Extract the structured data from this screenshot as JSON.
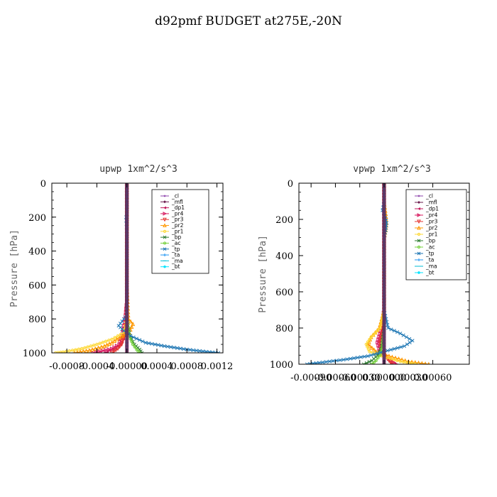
{
  "page": {
    "title": "d92pmf  BUDGET at275E,-20N"
  },
  "colors": {
    "_cl": "#8e44ad",
    "_mfl": "#6a1b4d",
    "_dp1": "#c2185b",
    "_pr4": "#d81b60",
    "_pr3": "#e53935",
    "_pr2": "#ff9800",
    "_pr1": "#fdd835",
    "_bp": "#2e7d32",
    "_ac": "#76d13d",
    "_tp": "#1f77b4",
    "_ta": "#2196f3",
    "_ma": "#00bcd4",
    "_bt": "#00e5ff"
  },
  "chart_data": [
    {
      "type": "line",
      "title": "upwp   1xm^2/s^3",
      "ylabel": "Pressure [hPa]",
      "xlabel": "",
      "xlim": [
        -0.001,
        0.00128
      ],
      "ylim": [
        1000,
        0
      ],
      "x_ticks": [
        -0.0008,
        -0.0004,
        0.0,
        0.0004,
        0.0008,
        0.0012
      ],
      "x_tick_labels": [
        "-0.0008",
        "-0.0004",
        "-0.00000",
        "0.0004",
        "0.0008",
        "0.0012"
      ],
      "y_ticks": [
        0,
        200,
        400,
        600,
        800,
        1000
      ],
      "y_tick_labels": [
        "0",
        "200",
        "400",
        "600",
        "800",
        "1000"
      ],
      "legend_position": "top-right",
      "legend": [
        "_cl",
        "_mfl",
        "_dp1",
        "_pr4",
        "_pr3",
        "_pr2",
        "_pr1",
        "_bp",
        "_ac",
        "_tp",
        "_ta",
        "_ma",
        "_bt"
      ],
      "series": [
        {
          "name": "_cl",
          "x": [
            0,
            0,
            0,
            0,
            0,
            0,
            0,
            0,
            0,
            0,
            0
          ],
          "y": [
            0,
            100,
            200,
            300,
            400,
            500,
            600,
            700,
            800,
            900,
            1000
          ]
        },
        {
          "name": "_mfl",
          "x": [
            0,
            0,
            0,
            0,
            0,
            0,
            0,
            0,
            0,
            0,
            0
          ],
          "y": [
            0,
            100,
            200,
            300,
            400,
            500,
            600,
            700,
            800,
            900,
            1000
          ]
        },
        {
          "name": "_dp1",
          "x": [
            0,
            0,
            0,
            0,
            0,
            0,
            0,
            0,
            0,
            -3e-05,
            -8e-05,
            -0.00015,
            -0.0003
          ],
          "y": [
            0,
            100,
            200,
            300,
            400,
            500,
            600,
            700,
            800,
            900,
            950,
            975,
            1000
          ]
        },
        {
          "name": "_pr4",
          "x": [
            0,
            0,
            0,
            0,
            0,
            0,
            0,
            0,
            -2e-05,
            -6e-05,
            -0.0001,
            -0.0002,
            -0.00045
          ],
          "y": [
            0,
            100,
            200,
            300,
            400,
            500,
            600,
            700,
            800,
            900,
            950,
            975,
            1000
          ]
        },
        {
          "name": "_pr3",
          "x": [
            0,
            0,
            0,
            0,
            0,
            0,
            0,
            0,
            -1e-05,
            -4e-05,
            -7e-05,
            -0.00012,
            -0.0002
          ],
          "y": [
            0,
            100,
            200,
            300,
            400,
            500,
            600,
            700,
            800,
            900,
            950,
            975,
            1000
          ]
        },
        {
          "name": "_pr2",
          "x": [
            0,
            0,
            0,
            0,
            0,
            0,
            0,
            2e-05,
            8e-05,
            3e-05,
            -0.0001,
            -0.0002,
            -0.0003,
            -0.0005,
            -0.0007
          ],
          "y": [
            0,
            100,
            200,
            300,
            400,
            500,
            600,
            800,
            830,
            880,
            910,
            940,
            960,
            985,
            1000
          ]
        },
        {
          "name": "_pr1",
          "x": [
            0,
            0,
            0,
            0,
            0,
            0,
            0,
            0,
            0,
            -4e-05,
            -0.0002,
            -0.0004,
            -0.0006,
            -0.00085,
            -0.00095
          ],
          "y": [
            0,
            100,
            200,
            300,
            400,
            500,
            600,
            700,
            800,
            880,
            920,
            950,
            975,
            995,
            1000
          ]
        },
        {
          "name": "_bp",
          "x": [
            0,
            0,
            0,
            0,
            0,
            0,
            0,
            0,
            0,
            4e-05,
            0.0001,
            0.00017,
            0.0002
          ],
          "y": [
            0,
            100,
            200,
            300,
            400,
            500,
            600,
            700,
            800,
            900,
            950,
            980,
            1000
          ]
        },
        {
          "name": "_ac",
          "x": [
            0,
            0,
            0,
            0,
            0,
            0,
            0,
            0,
            0,
            3e-05,
            8e-05,
            0.00013,
            0.00017
          ],
          "y": [
            0,
            100,
            200,
            300,
            400,
            500,
            600,
            700,
            800,
            900,
            950,
            980,
            1000
          ]
        },
        {
          "name": "_tp",
          "x": [
            0,
            0,
            0,
            -1e-05,
            0,
            0,
            0,
            0,
            -4e-05,
            -0.00011,
            -4e-05,
            5e-05,
            0.00025,
            0.0005,
            0.0008,
            0.0011,
            0.00122
          ],
          "y": [
            0,
            100,
            180,
            200,
            300,
            400,
            600,
            780,
            800,
            840,
            870,
            900,
            940,
            960,
            980,
            995,
            1000
          ]
        },
        {
          "name": "_ta",
          "x": [
            0,
            0,
            0,
            0,
            0,
            0,
            0,
            0,
            0,
            0,
            0
          ],
          "y": [
            0,
            100,
            200,
            300,
            400,
            500,
            600,
            700,
            800,
            900,
            1000
          ]
        },
        {
          "name": "_ma",
          "x": [
            0,
            0,
            0,
            0,
            0,
            0,
            0,
            0,
            0,
            0,
            0
          ],
          "y": [
            0,
            100,
            200,
            300,
            400,
            500,
            600,
            700,
            800,
            900,
            1000
          ]
        },
        {
          "name": "_bt",
          "x": [
            0,
            0,
            0,
            0,
            0,
            0,
            0,
            0,
            0,
            0,
            0
          ],
          "y": [
            0,
            100,
            200,
            300,
            400,
            500,
            600,
            700,
            800,
            900,
            1000
          ]
        }
      ]
    },
    {
      "type": "line",
      "title": "vpwp   1xm^2/s^3",
      "ylabel": "Pressure [hPa]",
      "xlabel": "",
      "xlim": [
        -0.00105,
        0.00105
      ],
      "ylim": [
        1000,
        0
      ],
      "x_ticks": [
        -0.0009,
        -0.0006,
        -0.0003,
        0.0,
        0.0003,
        0.0006
      ],
      "x_tick_labels": [
        "-0.00090",
        "-0.00060",
        "-0.00030",
        "0.000000",
        "0.00030",
        "0.00060"
      ],
      "y_ticks": [
        0,
        200,
        400,
        600,
        800,
        1000
      ],
      "y_tick_labels": [
        "0",
        "200",
        "400",
        "600",
        "800",
        "1000"
      ],
      "legend_position": "top-right",
      "legend": [
        "_cl",
        "_mfl",
        "_dp1",
        "_pr4",
        "_pr3",
        "_pr2",
        "_pr1",
        "_bp",
        "_ac",
        "_tp",
        "_ta",
        "_ma",
        "_bt"
      ],
      "series": [
        {
          "name": "_cl",
          "x": [
            0,
            0,
            0,
            0,
            0,
            0,
            0,
            0,
            0,
            0,
            0
          ],
          "y": [
            0,
            100,
            200,
            300,
            400,
            500,
            600,
            700,
            800,
            900,
            1000
          ]
        },
        {
          "name": "_mfl",
          "x": [
            0,
            0,
            0,
            0,
            0,
            0,
            0,
            0,
            0,
            0,
            0
          ],
          "y": [
            0,
            100,
            200,
            300,
            400,
            500,
            600,
            700,
            800,
            900,
            1000
          ]
        },
        {
          "name": "_dp1",
          "x": [
            0,
            0,
            0,
            0,
            0,
            0,
            0,
            0,
            -2e-05,
            -6e-05,
            -4e-05,
            4e-05,
            0.0001
          ],
          "y": [
            0,
            100,
            200,
            300,
            400,
            500,
            600,
            700,
            800,
            880,
            930,
            970,
            1000
          ]
        },
        {
          "name": "_pr4",
          "x": [
            0,
            0,
            0,
            0,
            0,
            0,
            0,
            0,
            -3e-05,
            -8e-05,
            -5e-05,
            6e-05,
            0.00015
          ],
          "y": [
            0,
            100,
            200,
            300,
            400,
            500,
            600,
            700,
            800,
            880,
            930,
            970,
            1000
          ]
        },
        {
          "name": "_pr3",
          "x": [
            0,
            0,
            0,
            0,
            0,
            0,
            0,
            0,
            -2e-05,
            -5e-05,
            -3e-05,
            4e-05,
            0.0001
          ],
          "y": [
            0,
            100,
            200,
            300,
            400,
            500,
            600,
            700,
            800,
            880,
            930,
            970,
            1000
          ]
        },
        {
          "name": "_pr2",
          "x": [
            0,
            0,
            2e-05,
            3e-05,
            2e-05,
            0,
            0,
            0,
            -6e-05,
            -0.00016,
            -0.0002,
            -0.0001,
            0.0001,
            0.0003,
            0.00055
          ],
          "y": [
            0,
            100,
            170,
            220,
            260,
            300,
            500,
            700,
            800,
            850,
            890,
            930,
            960,
            985,
            1000
          ]
        },
        {
          "name": "_pr1",
          "x": [
            0,
            0,
            0,
            0,
            0,
            0,
            0,
            0,
            -5e-05,
            -0.00016,
            -0.00022,
            -0.00018,
            0,
            0.0002,
            0.0004
          ],
          "y": [
            0,
            100,
            200,
            300,
            400,
            500,
            600,
            700,
            800,
            850,
            890,
            930,
            960,
            985,
            1000
          ]
        },
        {
          "name": "_bp",
          "x": [
            0,
            0,
            0,
            0,
            0,
            0,
            0,
            0,
            0,
            -3e-05,
            -8e-05,
            -0.00015,
            -0.00025
          ],
          "y": [
            0,
            100,
            200,
            300,
            400,
            500,
            600,
            700,
            800,
            900,
            950,
            980,
            1000
          ]
        },
        {
          "name": "_ac",
          "x": [
            0,
            0,
            0,
            0,
            0,
            0,
            0,
            0,
            0,
            -2e-05,
            -5e-05,
            -0.0001,
            -0.00015
          ],
          "y": [
            0,
            100,
            200,
            300,
            400,
            500,
            600,
            700,
            800,
            900,
            950,
            980,
            1000
          ]
        },
        {
          "name": "_tp",
          "x": [
            0,
            0,
            -2e-05,
            1e-05,
            3e-05,
            2e-05,
            0,
            0,
            5e-05,
            0.0002,
            0.00035,
            0.00025,
            0,
            -0.0002,
            -0.0005,
            -0.0008,
            -0.00095
          ],
          "y": [
            0,
            100,
            150,
            180,
            220,
            260,
            300,
            700,
            800,
            830,
            870,
            900,
            930,
            955,
            975,
            992,
            1000
          ]
        },
        {
          "name": "_ta",
          "x": [
            0,
            0,
            0,
            0,
            0,
            0,
            0,
            0,
            0,
            0,
            0
          ],
          "y": [
            0,
            100,
            200,
            300,
            400,
            500,
            600,
            700,
            800,
            900,
            1000
          ]
        },
        {
          "name": "_ma",
          "x": [
            0,
            0,
            0,
            0,
            0,
            0,
            0,
            0,
            0,
            0,
            0
          ],
          "y": [
            0,
            100,
            200,
            300,
            400,
            500,
            600,
            700,
            800,
            900,
            1000
          ]
        },
        {
          "name": "_bt",
          "x": [
            0,
            0,
            0,
            0,
            0,
            0,
            0,
            0,
            0,
            0,
            0
          ],
          "y": [
            0,
            100,
            200,
            300,
            400,
            500,
            600,
            700,
            800,
            900,
            1000
          ]
        }
      ]
    }
  ]
}
